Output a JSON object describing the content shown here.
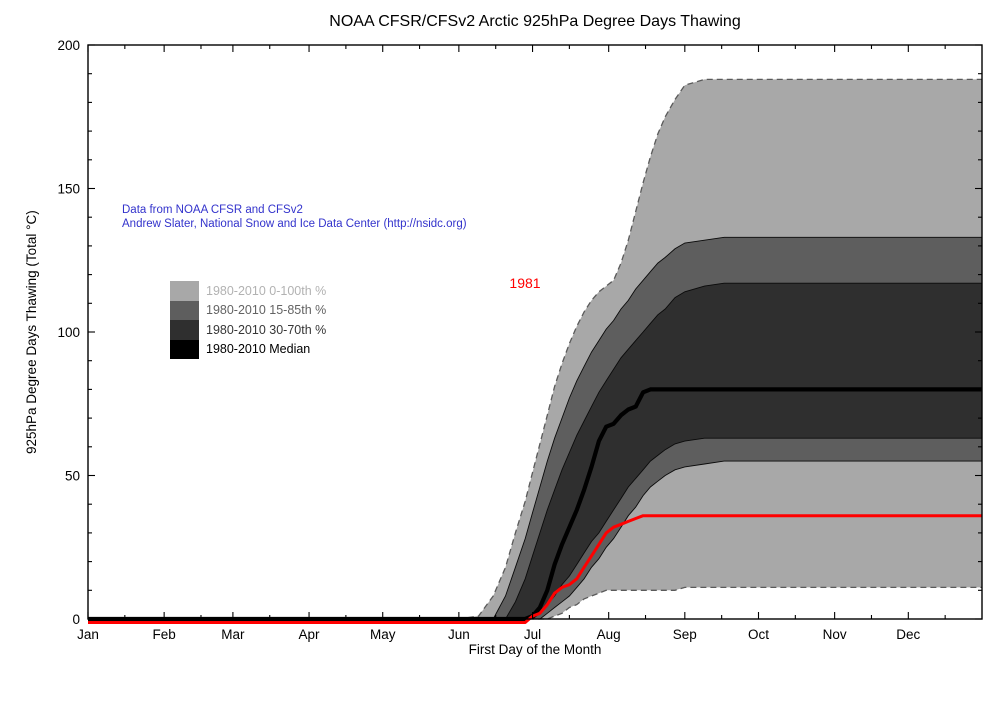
{
  "title": "NOAA CFSR/CFSv2 Arctic 925hPa Degree Days Thawing",
  "annotations": {
    "credit_line1": "Data from NOAA CFSR and CFSv2",
    "credit_line2": "Andrew Slater, National Snow and Ice Data Center (http://nsidc.org)",
    "credit_color": "#3333cc",
    "year_label": "1981",
    "year_color": "#ff0000"
  },
  "legend": {
    "items": [
      {
        "label": "1980-2010 0-100th %",
        "swatch": "#a8a8a8",
        "text_color": "#b2b2b2"
      },
      {
        "label": "1980-2010 15-85th %",
        "swatch": "#5e5e5e",
        "text_color": "#636363"
      },
      {
        "label": "1980-2010 30-70th %",
        "swatch": "#2f2f2f",
        "text_color": "#363636"
      },
      {
        "label": "1980-2010 Median",
        "swatch": "#000000",
        "text_color": "#000000"
      }
    ]
  },
  "chart_data": {
    "type": "area",
    "title": "NOAA CFSR/CFSv2 Arctic 925hPa Degree Days Thawing",
    "xlabel": "First Day of the Month",
    "ylabel": "925hPa Degree Days Thawing (Total °C)",
    "xlim_days": [
      1,
      365
    ],
    "ylim": [
      0,
      200
    ],
    "y_major_ticks": [
      0,
      50,
      100,
      150,
      200
    ],
    "y_minor_interval": 10,
    "month_ticks": {
      "labels": [
        "Jan",
        "Feb",
        "Mar",
        "Apr",
        "May",
        "Jun",
        "Jul",
        "Aug",
        "Sep",
        "Oct",
        "Nov",
        "Dec"
      ],
      "days": [
        1,
        32,
        60,
        91,
        121,
        152,
        182,
        213,
        244,
        274,
        305,
        335
      ],
      "minor_days": [
        16,
        47,
        75,
        106,
        136,
        167,
        197,
        228,
        259,
        289,
        320,
        350
      ]
    },
    "grid": false,
    "legend_position": "upper-left-inside",
    "days": [
      1,
      32,
      60,
      91,
      121,
      152,
      160,
      166,
      171,
      175,
      179,
      182,
      185,
      188,
      191,
      194,
      197,
      200,
      203,
      206,
      209,
      212,
      215,
      218,
      221,
      224,
      227,
      230,
      233,
      236,
      240,
      244,
      252,
      260,
      274,
      305,
      335,
      365
    ],
    "bands": [
      {
        "name": "1980-2010 0-100th %",
        "fill": "#a8a8a8",
        "edge_style": "dashed",
        "edge_color": "#5a5a5a",
        "upper": [
          0,
          0,
          0,
          0,
          0,
          0,
          1,
          8,
          18,
          30,
          41,
          51,
          61,
          71,
          81,
          89,
          96,
          102,
          107,
          111,
          114,
          116,
          118,
          124,
          132,
          142,
          152,
          161,
          169,
          175,
          181,
          186,
          188,
          188,
          188,
          188,
          188,
          188
        ],
        "lower": [
          0,
          0,
          0,
          0,
          0,
          0,
          0,
          0,
          0,
          0,
          0,
          0,
          0,
          0,
          1,
          2,
          4,
          5,
          7,
          8,
          9,
          10,
          10,
          10,
          10,
          10,
          10,
          10,
          10,
          10,
          10,
          11,
          11,
          11,
          11,
          11,
          11,
          11
        ]
      },
      {
        "name": "1980-2010 15-85th %",
        "fill": "#5e5e5e",
        "edge_style": "solid",
        "edge_color": "#0a0a0a",
        "upper": [
          0,
          0,
          0,
          0,
          0,
          0,
          0,
          0,
          8,
          18,
          28,
          37,
          46,
          55,
          63,
          70,
          77,
          83,
          88,
          93,
          97,
          101,
          104,
          108,
          111,
          115,
          118,
          121,
          124,
          126,
          129,
          131,
          132,
          133,
          133,
          133,
          133,
          133
        ],
        "lower": [
          0,
          0,
          0,
          0,
          0,
          0,
          0,
          0,
          0,
          0,
          0,
          0,
          0,
          2,
          4,
          6,
          8,
          11,
          14,
          18,
          21,
          25,
          28,
          32,
          36,
          39,
          43,
          46,
          48,
          50,
          52,
          53,
          54,
          55,
          55,
          55,
          55,
          55
        ]
      },
      {
        "name": "1980-2010 30-70th %",
        "fill": "#2f2f2f",
        "edge_style": "solid",
        "edge_color": "#0a0a0a",
        "upper": [
          0,
          0,
          0,
          0,
          0,
          0,
          0,
          0,
          0,
          6,
          14,
          22,
          30,
          38,
          45,
          52,
          58,
          64,
          69,
          74,
          79,
          83,
          87,
          91,
          94,
          97,
          100,
          103,
          106,
          108,
          112,
          114,
          116,
          117,
          117,
          117,
          117,
          117
        ],
        "lower": [
          0,
          0,
          0,
          0,
          0,
          0,
          0,
          0,
          0,
          0,
          0,
          0,
          2,
          5,
          8,
          12,
          15,
          19,
          23,
          27,
          30,
          34,
          38,
          42,
          46,
          49,
          52,
          55,
          57,
          59,
          61,
          62,
          63,
          63,
          63,
          63,
          63,
          63
        ]
      }
    ],
    "lines": [
      {
        "name": "1980-2010 Median",
        "color": "#000000",
        "width": 4.2,
        "values": [
          0,
          0,
          0,
          0,
          0,
          0,
          0,
          0,
          0,
          0,
          0,
          1,
          4,
          10,
          19,
          26,
          32,
          38,
          45,
          53,
          62,
          67,
          68,
          71,
          73,
          74,
          79,
          80,
          80,
          80,
          80,
          80,
          80,
          80,
          80,
          80,
          80,
          80
        ]
      },
      {
        "name": "1981",
        "color": "#ff0000",
        "width": 3,
        "values": [
          0,
          0,
          0,
          0,
          0,
          0,
          0,
          0,
          0,
          0,
          0,
          1,
          2,
          5,
          9,
          11,
          12,
          14,
          18,
          22,
          26,
          30,
          32,
          33,
          34,
          35,
          36,
          36,
          36,
          36,
          36,
          36,
          36,
          36,
          36,
          36,
          36,
          36
        ]
      }
    ]
  }
}
